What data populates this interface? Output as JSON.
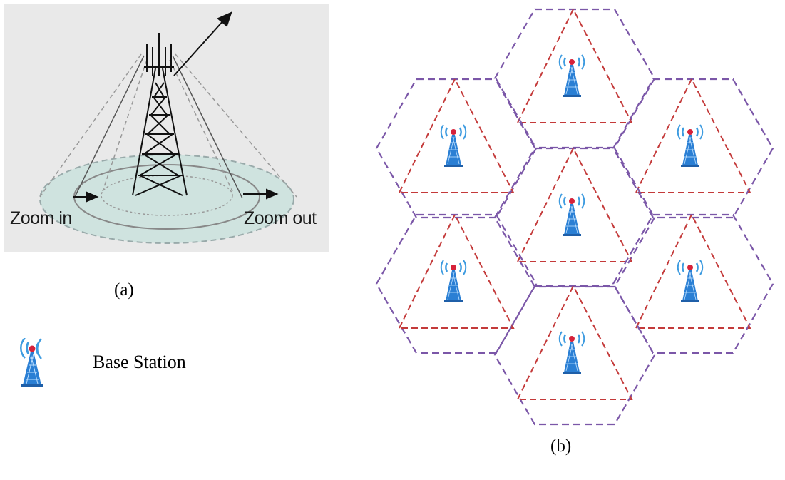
{
  "panel_a": {
    "zoom_in_label": "Zoom in",
    "zoom_out_label": "Zoom out",
    "caption": "(a)"
  },
  "legend": {
    "label": "Base Station",
    "icon": "base-station-tower-icon"
  },
  "panel_b": {
    "caption": "(b)",
    "cell_count": 7,
    "colors": {
      "hexagon_border": "#7b57a8",
      "triangle_border": "#c43a3a",
      "tower_blue": "#2a7fd4",
      "signal_red": "#d6223a",
      "signal_waves": "#3d9be0"
    }
  }
}
